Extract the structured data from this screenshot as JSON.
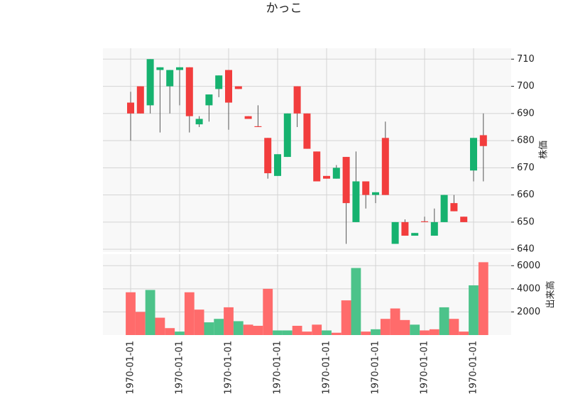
{
  "chart_data": {
    "type": "candlestick",
    "title": "かっこ",
    "categories": [
      "1970-01-01",
      null,
      null,
      null,
      null,
      "1970-01-01",
      null,
      null,
      null,
      null,
      "1970-01-01",
      null,
      null,
      null,
      null,
      "1970-01-01",
      null,
      null,
      null,
      null,
      "1970-01-01",
      null,
      null,
      null,
      null,
      "1970-01-01",
      null,
      null,
      null,
      null,
      "1970-01-01",
      null,
      null,
      null,
      null,
      "1970-01-01",
      null
    ],
    "open": [
      690,
      690,
      710,
      707,
      706,
      707,
      689,
      688,
      697,
      704,
      694,
      699,
      688,
      685,
      668,
      675,
      690,
      690,
      677,
      665,
      666,
      670,
      657,
      665,
      660,
      661,
      660,
      650,
      645,
      646,
      650,
      650,
      660,
      654,
      650,
      681,
      678
    ],
    "high": [
      698,
      700,
      710,
      707,
      706,
      707,
      707,
      689,
      697,
      704,
      706,
      700,
      689,
      693,
      681,
      675,
      690,
      700,
      690,
      676,
      667,
      671,
      674,
      676,
      665,
      661,
      687,
      650,
      651,
      646,
      652,
      655,
      660,
      660,
      652,
      681,
      690
    ],
    "low": [
      680,
      690,
      690,
      683,
      690,
      693,
      683,
      685,
      687,
      696,
      684,
      699,
      688,
      685,
      666,
      667,
      674,
      685,
      677,
      665,
      666,
      666,
      642,
      650,
      655,
      657,
      660,
      642,
      645,
      645,
      650,
      645,
      650,
      654,
      650,
      665,
      665
    ],
    "close": [
      694,
      700,
      693,
      706,
      700,
      706,
      707,
      686,
      693,
      699,
      706,
      700,
      689,
      685.3,
      681,
      667,
      674,
      700,
      690,
      676,
      667,
      666,
      674,
      650,
      665,
      660,
      681,
      642,
      650,
      645,
      650.3,
      645,
      650,
      657,
      652,
      669,
      682
    ],
    "volume": [
      3700,
      2000,
      3900,
      1500,
      600,
      300,
      3700,
      2200,
      1100,
      1400,
      2400,
      1200,
      900,
      800,
      4000,
      400,
      400,
      800,
      300,
      900,
      400,
      200,
      3000,
      5800,
      300,
      500,
      1400,
      2300,
      1300,
      900,
      400,
      500,
      2400,
      1400,
      300,
      4300,
      6300
    ],
    "volume_colors": [
      "#ff6b6b",
      "#ff6b6b",
      "#4cc38a",
      "#ff6b6b",
      "#ff6b6b",
      "#4cc38a",
      "#ff6b6b",
      "#ff6b6b",
      "#4cc38a",
      "#4cc38a",
      "#ff6b6b",
      "#4cc38a",
      "#ff6b6b",
      "#ff6b6b",
      "#ff6b6b",
      "#4cc38a",
      "#4cc38a",
      "#ff6b6b",
      "#ff6b6b",
      "#ff6b6b",
      "#4cc38a",
      "#ff6b6b",
      "#ff6b6b",
      "#4cc38a",
      "#ff6b6b",
      "#4cc38a",
      "#ff6b6b",
      "#ff6b6b",
      "#ff6b6b",
      "#4cc38a",
      "#ff6b6b",
      "#ff6b6b",
      "#4cc38a",
      "#ff6b6b",
      "#ff6b6b",
      "#4cc38a",
      "#ff6b6b"
    ],
    "up_color": "#f23d3d",
    "down_color": "#16b26f",
    "ylabel": "株価",
    "ylim": [
      639,
      714
    ],
    "yticks": [
      640,
      650,
      660,
      670,
      680,
      690,
      700,
      710
    ],
    "volume_label": "出来高",
    "volume_ylim": [
      0,
      7000
    ],
    "volume_yticks": [
      2000,
      4000,
      6000
    ],
    "grid": true
  }
}
